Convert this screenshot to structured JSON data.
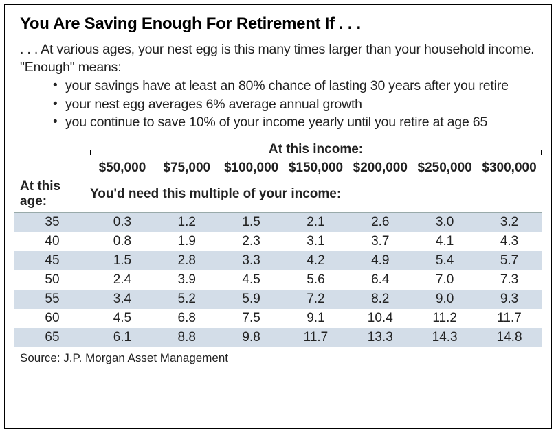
{
  "title": "You Are Saving Enough For Retirement If . . .",
  "subtitle": ". . . At various ages, your nest egg is this many times larger than your household income.",
  "enough_label": "\"Enough\" means:",
  "bullets": [
    "your savings have at least an 80% chance of lasting 30 years after you retire",
    "your nest egg averages 6% average annual growth",
    "you continue to save 10% of your income yearly until you retire at age 65"
  ],
  "table": {
    "income_header": "At this income:",
    "age_header": "At this age:",
    "multiple_header": "You'd need this multiple of your income:",
    "columns": [
      "$50,000",
      "$75,000",
      "$100,000",
      "$150,000",
      "$200,000",
      "$250,000",
      "$300,000"
    ],
    "rows": [
      {
        "age": "35",
        "vals": [
          "0.3",
          "1.2",
          "1.5",
          "2.1",
          "2.6",
          "3.0",
          "3.2"
        ]
      },
      {
        "age": "40",
        "vals": [
          "0.8",
          "1.9",
          "2.3",
          "3.1",
          "3.7",
          "4.1",
          "4.3"
        ]
      },
      {
        "age": "45",
        "vals": [
          "1.5",
          "2.8",
          "3.3",
          "4.2",
          "4.9",
          "5.4",
          "5.7"
        ]
      },
      {
        "age": "50",
        "vals": [
          "2.4",
          "3.9",
          "4.5",
          "5.6",
          "6.4",
          "7.0",
          "7.3"
        ]
      },
      {
        "age": "55",
        "vals": [
          "3.4",
          "5.2",
          "5.9",
          "7.2",
          "8.2",
          "9.0",
          "9.3"
        ]
      },
      {
        "age": "60",
        "vals": [
          "4.5",
          "6.8",
          "7.5",
          "9.1",
          "10.4",
          "11.2",
          "11.7"
        ]
      },
      {
        "age": "65",
        "vals": [
          "6.1",
          "8.8",
          "9.8",
          "11.7",
          "13.3",
          "14.3",
          "14.8"
        ]
      }
    ],
    "band_color": "#d3dde8",
    "text_color": "#222222",
    "background": "#ffffff"
  },
  "source": "Source:  J.P. Morgan Asset Management"
}
